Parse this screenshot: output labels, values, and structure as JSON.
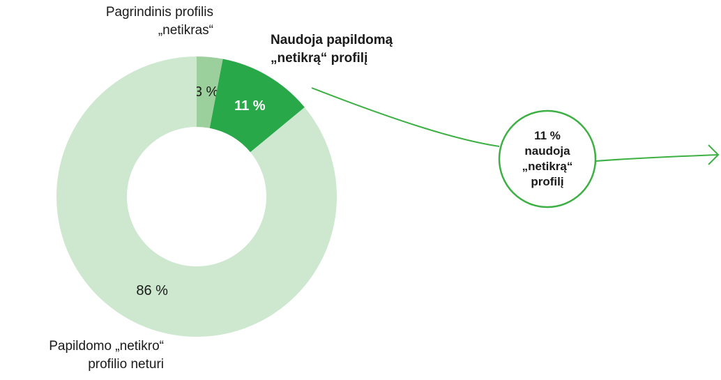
{
  "chart_data": {
    "type": "donut",
    "categories": [
      "Pagrindinis profilis\n„netikras“",
      "Naudoja papildomą\n„netikrą“ profilį",
      "Papildomo „netikro“\nprofilio neturi"
    ],
    "values": [
      3,
      11,
      86
    ],
    "value_labels": [
      "3 %",
      "11 %",
      "86 %"
    ],
    "colors": [
      "#9bd09c",
      "#29a84a",
      "#cde8cf"
    ],
    "label_colors": [
      "#1a1a1a",
      "#ffffff",
      "#1a1a1a"
    ],
    "annotation": "11 %\nnaudoja\n„netikrą“\nprofilį"
  }
}
